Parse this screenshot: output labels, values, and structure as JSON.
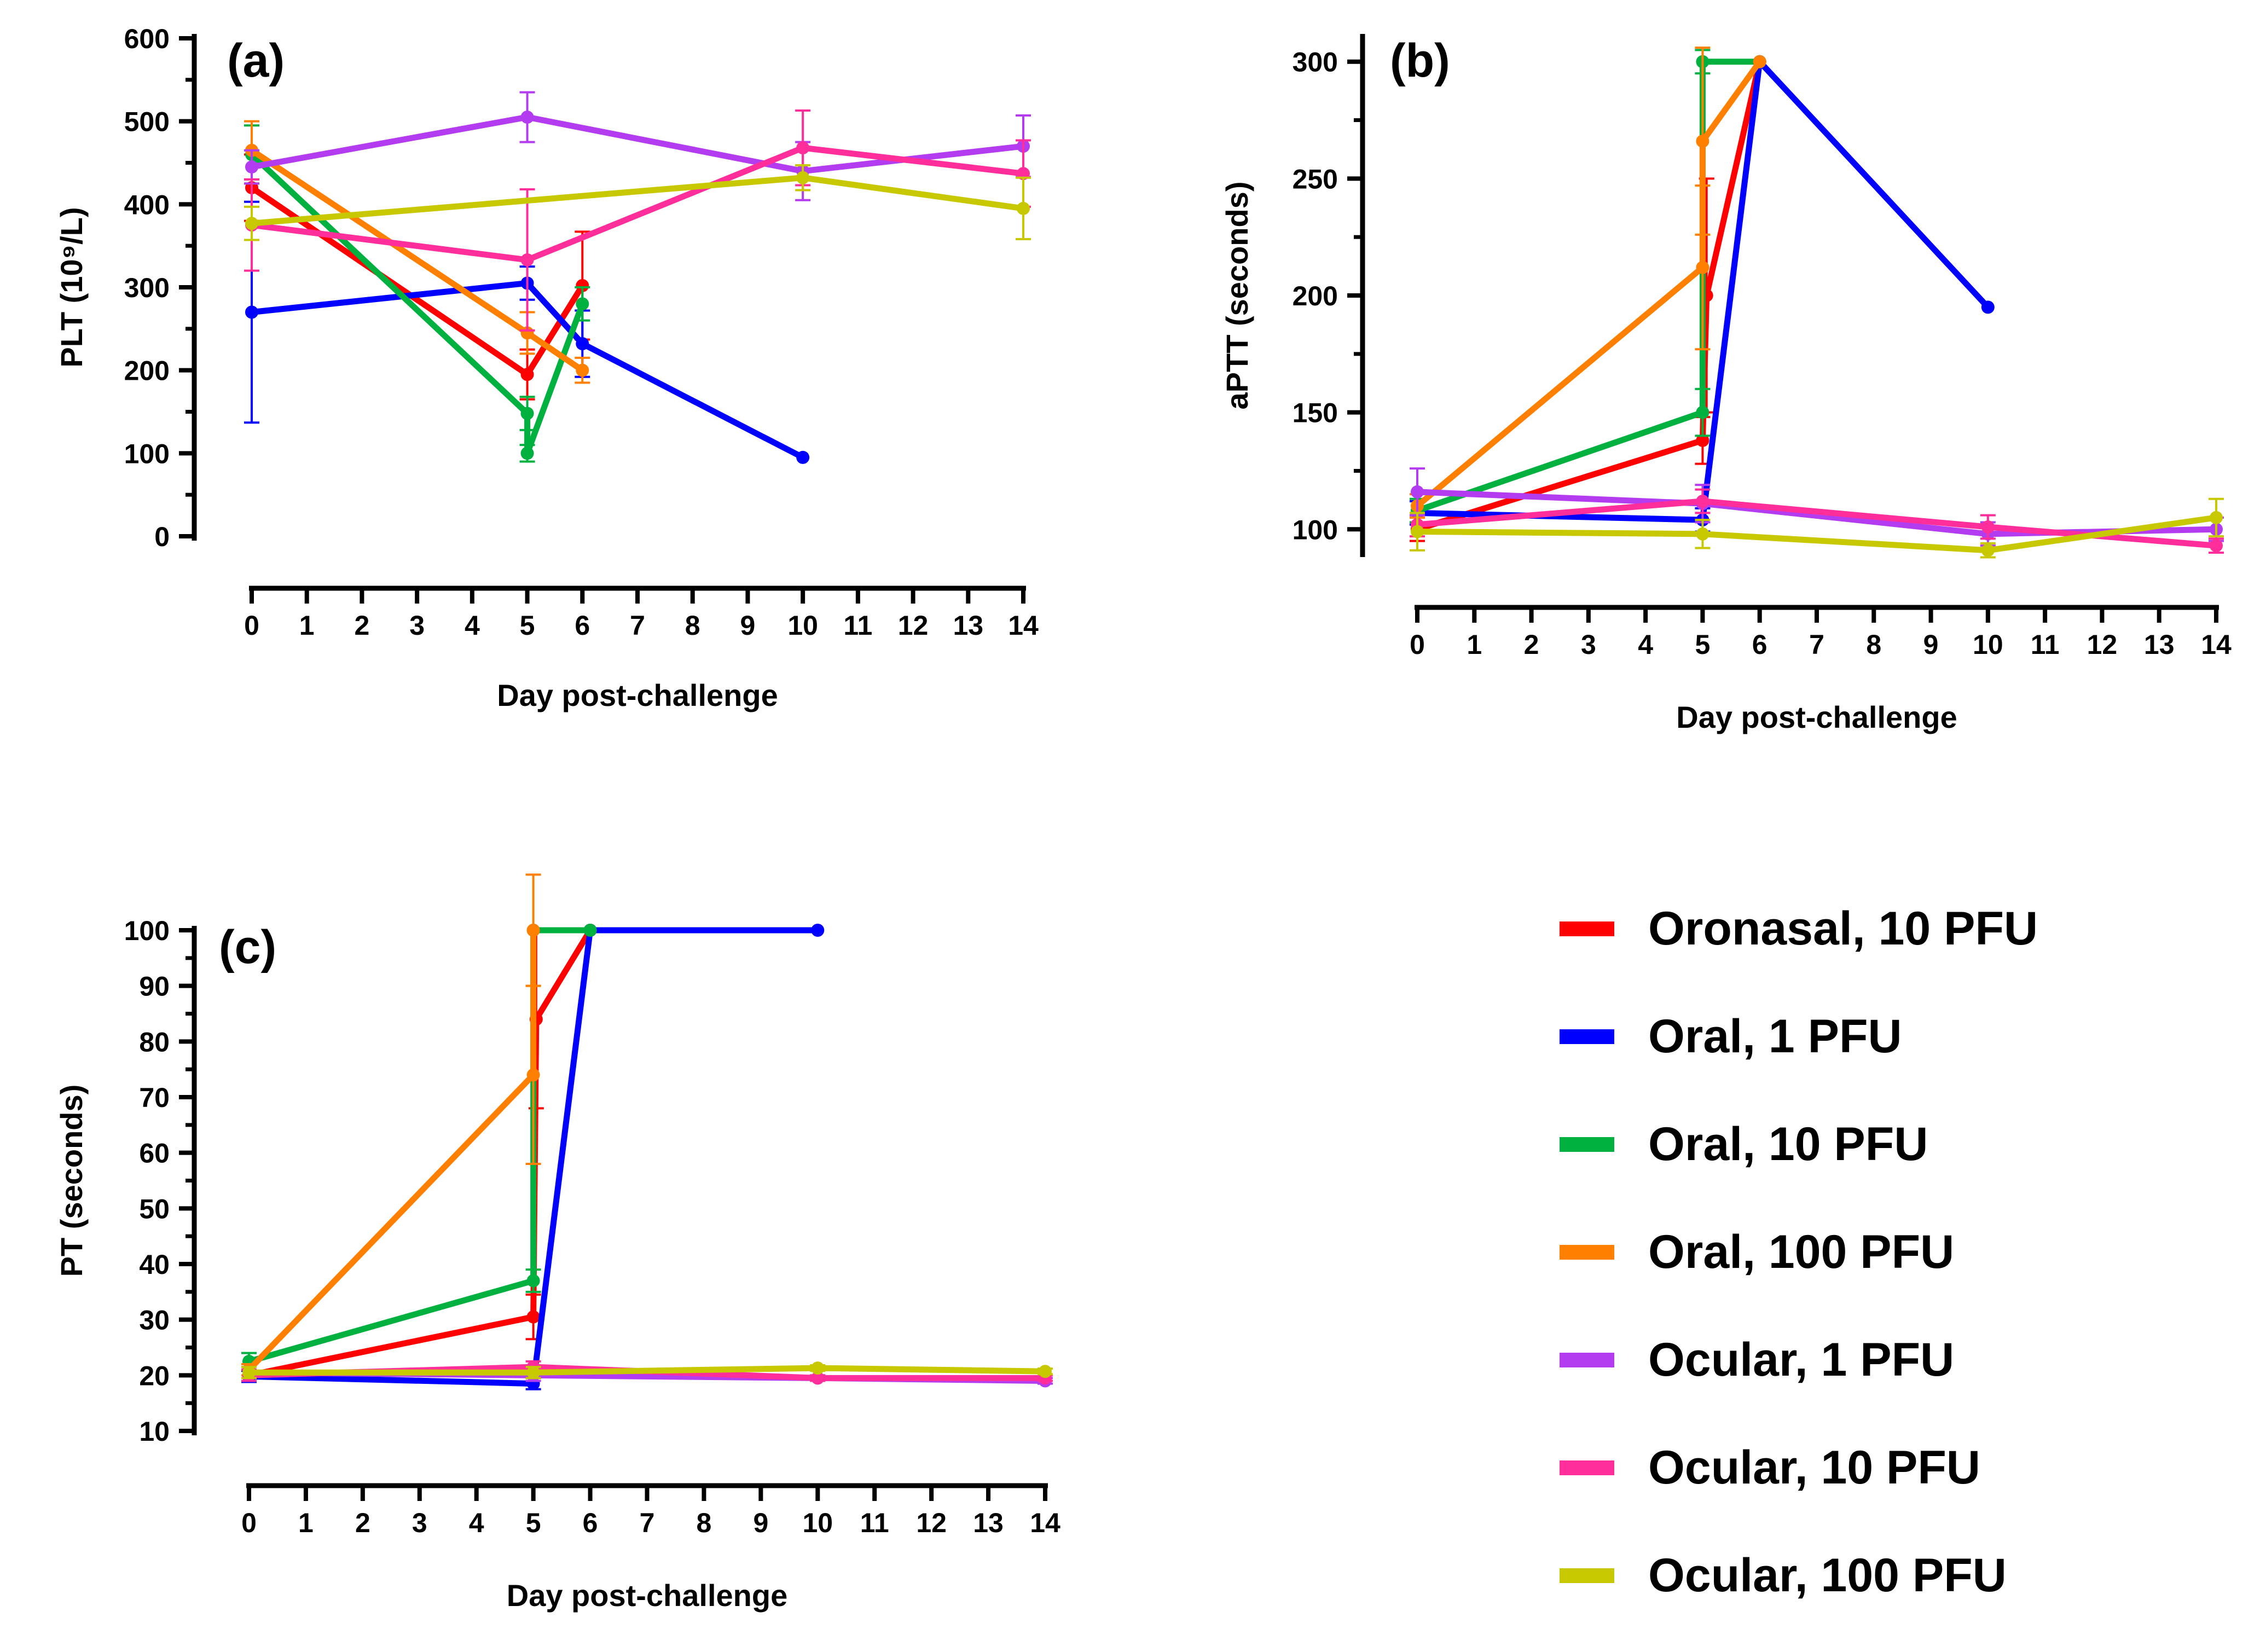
{
  "series": [
    {
      "name": "Oronasal, 10 PFU",
      "color": "#ff0000"
    },
    {
      "name": "Oral, 1 PFU",
      "color": "#0000ff"
    },
    {
      "name": "Oral, 10 PFU",
      "color": "#00b140"
    },
    {
      "name": "Oral, 100 PFU",
      "color": "#ff7f00"
    },
    {
      "name": "Ocular, 1 PFU",
      "color": "#b43cf0"
    },
    {
      "name": "Ocular, 10 PFU",
      "color": "#ff2e9a"
    },
    {
      "name": "Ocular, 100 PFU",
      "color": "#c8c800"
    }
  ],
  "chart_data": [
    {
      "type": "line",
      "panel_label": "(a)",
      "xlabel": "Day post-challenge",
      "ylabel": "PLT (10⁹/L)",
      "xlim": [
        0,
        14
      ],
      "ylim": [
        0,
        600
      ],
      "xticks": [
        0,
        1,
        2,
        3,
        4,
        5,
        6,
        7,
        8,
        9,
        10,
        11,
        12,
        13,
        14
      ],
      "yticks": [
        0,
        100,
        200,
        300,
        400,
        500,
        600
      ],
      "series": [
        {
          "name": "Oronasal, 10 PFU",
          "x": [
            0,
            5,
            6
          ],
          "y": [
            420,
            195,
            302
          ],
          "err": [
            40,
            30,
            65
          ]
        },
        {
          "name": "Oral, 1 PFU",
          "x": [
            0,
            5,
            6,
            10
          ],
          "y": [
            270,
            305,
            232,
            95
          ],
          "err": [
            133,
            20,
            40,
            0
          ]
        },
        {
          "name": "Oral, 10 PFU",
          "x": [
            0,
            5,
            5,
            6
          ],
          "y": [
            460,
            148,
            100,
            280
          ],
          "err": [
            35,
            20,
            10,
            20
          ]
        },
        {
          "name": "Oral, 100 PFU",
          "x": [
            0,
            5,
            6
          ],
          "y": [
            465,
            245,
            200
          ],
          "err": [
            35,
            25,
            15
          ]
        },
        {
          "name": "Ocular, 1 PFU",
          "x": [
            0,
            5,
            10,
            14
          ],
          "y": [
            445,
            505,
            440,
            470
          ],
          "err": [
            20,
            30,
            35,
            37
          ]
        },
        {
          "name": "Ocular, 10 PFU",
          "x": [
            0,
            5,
            10,
            14
          ],
          "y": [
            375,
            333,
            468,
            437
          ],
          "err": [
            55,
            85,
            45,
            40
          ]
        },
        {
          "name": "Ocular, 100 PFU",
          "x": [
            0,
            10,
            14
          ],
          "y": [
            377,
            432,
            395
          ],
          "err": [
            20,
            15,
            37
          ]
        }
      ]
    },
    {
      "type": "line",
      "panel_label": "(b)",
      "xlabel": "Day post-challenge",
      "ylabel": "aPTT (seconds)",
      "xlim": [
        0,
        14
      ],
      "ylim": [
        90,
        310
      ],
      "xticks": [
        0,
        1,
        2,
        3,
        4,
        5,
        6,
        7,
        8,
        9,
        10,
        11,
        12,
        13,
        14
      ],
      "yticks": [
        100,
        150,
        200,
        250,
        300
      ],
      "series": [
        {
          "name": "Oronasal, 10 PFU",
          "x": [
            0,
            5,
            5.07,
            6
          ],
          "y": [
            100,
            138,
            200,
            300
          ],
          "err": [
            5,
            10,
            50,
            0
          ]
        },
        {
          "name": "Oral, 1 PFU",
          "x": [
            0,
            5,
            6,
            10
          ],
          "y": [
            107,
            104,
            300,
            195
          ],
          "err": [
            5,
            5,
            0,
            0
          ]
        },
        {
          "name": "Oral, 10 PFU",
          "x": [
            0,
            5,
            5,
            6
          ],
          "y": [
            108,
            150,
            300,
            300
          ],
          "err": [
            5,
            10,
            5,
            0
          ]
        },
        {
          "name": "Oral, 100 PFU",
          "x": [
            0,
            5,
            5,
            6
          ],
          "y": [
            110,
            212,
            266,
            300
          ],
          "err": [
            5,
            35,
            40,
            0
          ]
        },
        {
          "name": "Ocular, 1 PFU",
          "x": [
            0,
            5,
            10,
            14
          ],
          "y": [
            116,
            111,
            98,
            100
          ],
          "err": [
            10,
            8,
            5,
            5
          ]
        },
        {
          "name": "Ocular, 10 PFU",
          "x": [
            0,
            5,
            10,
            14
          ],
          "y": [
            102,
            112,
            101,
            93
          ],
          "err": [
            5,
            5,
            5,
            3
          ]
        },
        {
          "name": "Ocular, 100 PFU",
          "x": [
            0,
            5,
            10,
            14
          ],
          "y": [
            99,
            98,
            91,
            105
          ],
          "err": [
            8,
            6,
            3,
            8
          ]
        }
      ]
    },
    {
      "type": "line",
      "panel_label": "(c)",
      "xlabel": "Day post-challenge",
      "ylabel": "PT (seconds)",
      "xlim": [
        0,
        14
      ],
      "ylim": [
        10,
        100
      ],
      "xticks": [
        0,
        1,
        2,
        3,
        4,
        5,
        6,
        7,
        8,
        9,
        10,
        11,
        12,
        13,
        14
      ],
      "yticks": [
        10,
        20,
        30,
        40,
        50,
        60,
        70,
        80,
        90,
        100
      ],
      "series": [
        {
          "name": "Oronasal, 10 PFU",
          "x": [
            0,
            5,
            5.05,
            6
          ],
          "y": [
            20,
            30.5,
            84,
            100
          ],
          "err": [
            1,
            4,
            16,
            0
          ]
        },
        {
          "name": "Oral, 1 PFU",
          "x": [
            0,
            5,
            6,
            10
          ],
          "y": [
            19.8,
            18.5,
            100,
            100
          ],
          "err": [
            1,
            1,
            0,
            0
          ]
        },
        {
          "name": "Oral, 10 PFU",
          "x": [
            0,
            5,
            5,
            6
          ],
          "y": [
            22.5,
            37,
            100,
            100
          ],
          "err": [
            1.5,
            2,
            0,
            0
          ]
        },
        {
          "name": "Oral, 100 PFU",
          "x": [
            0,
            5,
            5
          ],
          "y": [
            21,
            74,
            100
          ],
          "err": [
            1,
            16,
            10
          ]
        },
        {
          "name": "Ocular, 1 PFU",
          "x": [
            0,
            5,
            10,
            14
          ],
          "y": [
            20.5,
            20,
            19.5,
            19
          ],
          "err": [
            1,
            1,
            0.5,
            0.5
          ]
        },
        {
          "name": "Ocular, 10 PFU",
          "x": [
            0,
            5,
            10,
            14
          ],
          "y": [
            20,
            21.5,
            19.5,
            19.5
          ],
          "err": [
            1,
            1,
            0.5,
            0.5
          ]
        },
        {
          "name": "Ocular, 100 PFU",
          "x": [
            0,
            5,
            10,
            14
          ],
          "y": [
            20.5,
            20.5,
            21.3,
            20.7
          ],
          "err": [
            1,
            1,
            0.5,
            0.5
          ]
        }
      ]
    }
  ]
}
